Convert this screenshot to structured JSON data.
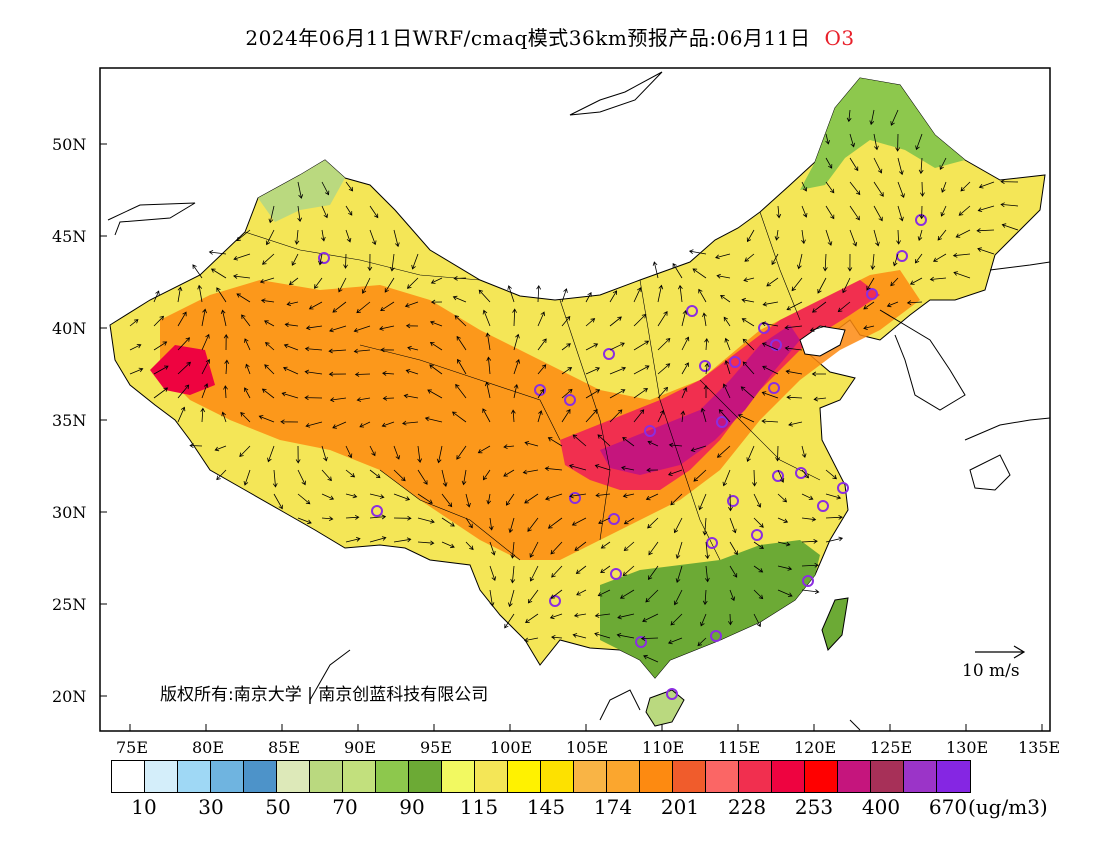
{
  "header": {
    "title": "2024年06月11日WRF/cmaq模式36km预报产品:06月11日",
    "species": "O3"
  },
  "map": {
    "lon_labels": [
      "75E",
      "80E",
      "85E",
      "90E",
      "95E",
      "100E",
      "105E",
      "110E",
      "115E",
      "120E",
      "125E",
      "130E",
      "135E"
    ],
    "lat_labels": [
      "50N",
      "45N",
      "40N",
      "35N",
      "30N",
      "25N",
      "20N"
    ],
    "copyright": "版权所有:南京大学 | 南京创蓝科技有限公司",
    "wind_reference": "10 m/s"
  },
  "colorbar": {
    "colors": [
      "#ffffff",
      "#d4eefa",
      "#9fd8f5",
      "#6fb4e0",
      "#4d93c9",
      "#dde9b9",
      "#bad97f",
      "#c2e07d",
      "#8dc84d",
      "#6caa35",
      "#f2f961",
      "#f4e657",
      "#fff200",
      "#fde100",
      "#f9b445",
      "#fba62e",
      "#fd8a11",
      "#f05c2c",
      "#fb6665",
      "#f12f4f",
      "#ee0340",
      "#ff0000",
      "#c5157d",
      "#a73058",
      "#9b34c8",
      "#8526e3"
    ],
    "labels": [
      "10",
      "30",
      "50",
      "70",
      "90",
      "115",
      "145",
      "174",
      "201",
      "228",
      "253",
      "400",
      "670"
    ],
    "unit": "(ug/m3)"
  },
  "map_layers": {
    "ocean_color": "#ffffff",
    "high_ozone_core_color": "#c5157d",
    "station_marker_color": "#8b2ee0"
  }
}
